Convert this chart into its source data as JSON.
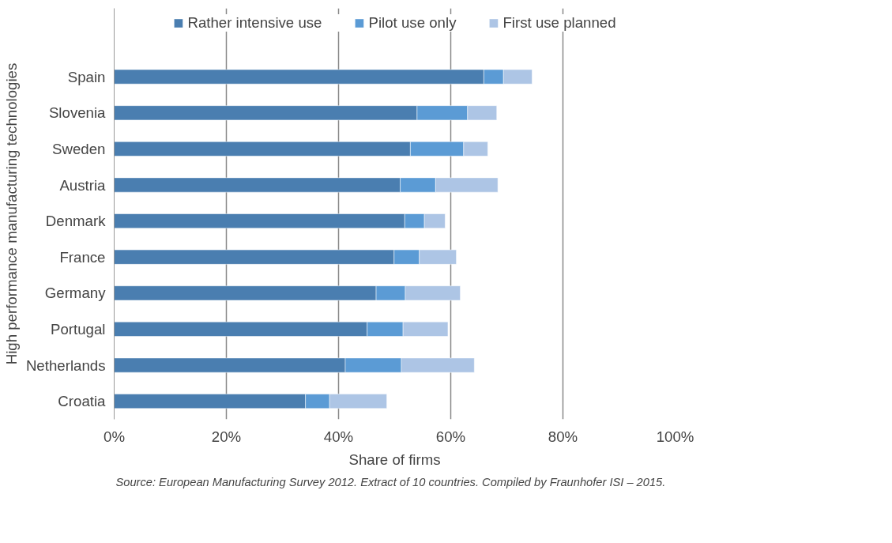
{
  "chart_data": {
    "type": "bar",
    "orientation": "horizontal",
    "stacked": true,
    "categories": [
      "Spain",
      "Slovenia",
      "Sweden",
      "Austria",
      "Denmark",
      "France",
      "Germany",
      "Portugal",
      "Netherlands",
      "Croatia"
    ],
    "series": [
      {
        "name": "Rather intensive use",
        "color": "#4a7eb0",
        "values": [
          65.9,
          54.0,
          52.8,
          51.0,
          51.8,
          49.9,
          46.7,
          45.1,
          41.2,
          34.1
        ]
      },
      {
        "name": "Pilot use only",
        "color": "#5b9bd5",
        "values": [
          3.5,
          9.0,
          9.5,
          6.3,
          3.5,
          4.5,
          5.2,
          6.4,
          10.0,
          4.3
        ]
      },
      {
        "name": "First use planned",
        "color": "#adc5e5",
        "values": [
          5.1,
          5.2,
          4.3,
          11.1,
          3.7,
          6.6,
          9.8,
          8.0,
          13.0,
          10.2
        ]
      }
    ],
    "xlim": [
      0,
      100
    ],
    "xticks": [
      {
        "value": 0,
        "label": "0%"
      },
      {
        "value": 20,
        "label": "20%"
      },
      {
        "value": 40,
        "label": "40%"
      },
      {
        "value": 60,
        "label": "60%"
      },
      {
        "value": 80,
        "label": "80%"
      },
      {
        "value": 100,
        "label": "100%"
      }
    ],
    "xlabel": "Share of firms",
    "ylabel": "High performance manufacturing technologies",
    "grid": "x",
    "legend": "top",
    "annotations": [
      "Source: European Manufacturing Survey 2012.  Extract  of 10  countries. Compiled by Fraunhofer ISI – 2015."
    ]
  }
}
